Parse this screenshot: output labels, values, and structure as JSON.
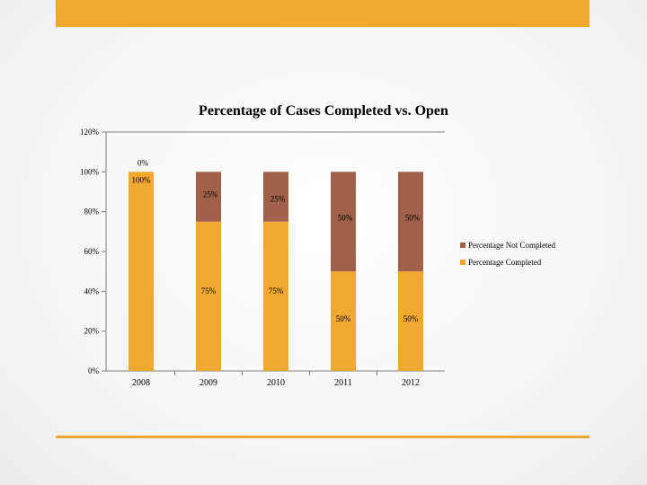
{
  "colors": {
    "accent": "#F0A830",
    "completed": "#F0A830",
    "not_completed": "#A0604A",
    "axis": "#808080"
  },
  "chart_data": {
    "type": "bar",
    "stacked": true,
    "title": "Percentage of Cases Completed vs. Open",
    "xlabel": "",
    "ylabel": "",
    "ylim": [
      0,
      120
    ],
    "yticks": [
      "0%",
      "20%",
      "40%",
      "60%",
      "80%",
      "100%",
      "120%"
    ],
    "categories": [
      "2008",
      "2009",
      "2010",
      "2011",
      "2012"
    ],
    "series": [
      {
        "name": "Percentage Completed",
        "values": [
          100,
          75,
          75,
          50,
          50
        ],
        "labels": [
          "100%",
          "75%",
          "75%",
          "50%",
          "50%"
        ]
      },
      {
        "name": "Percentage Not Completed",
        "values": [
          0,
          25,
          25,
          50,
          50
        ],
        "labels": [
          "0%",
          "25%",
          "25%",
          "50%",
          "50%"
        ]
      }
    ],
    "legend": [
      "Percentage Not Completed",
      "Percentage Completed"
    ],
    "legend_position": "right",
    "grid": false
  }
}
